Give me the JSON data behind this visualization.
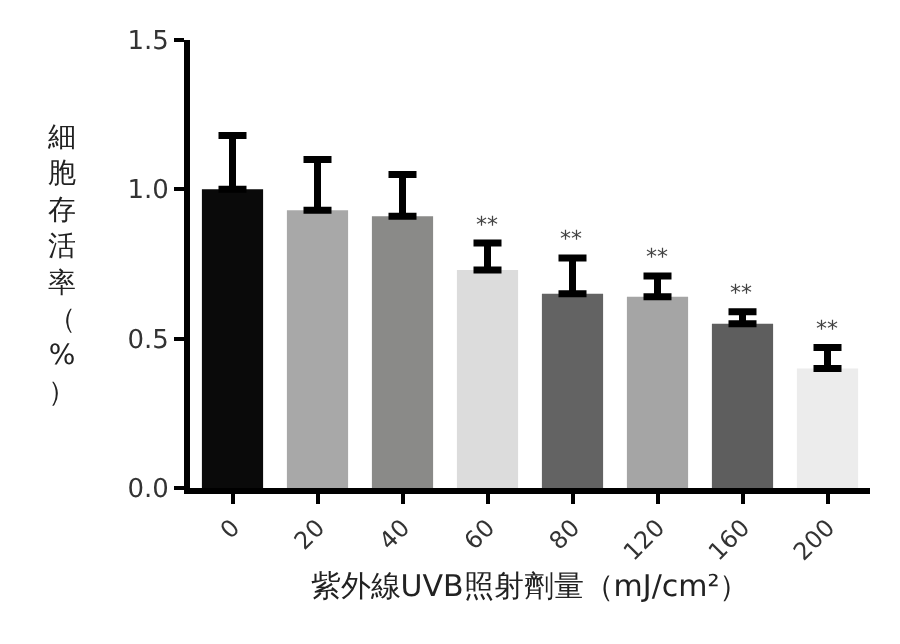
{
  "chart_data": {
    "type": "bar",
    "xlabel": "紫外線UVB照射劑量（mJ/cm²）",
    "ylabel": "細胞存活率（%）",
    "categories": [
      "0",
      "20",
      "40",
      "60",
      "80",
      "120",
      "160",
      "200"
    ],
    "values": [
      1.0,
      0.93,
      0.91,
      0.73,
      0.65,
      0.64,
      0.55,
      0.4
    ],
    "colors": [
      "#0a0a0a",
      "#a8a8a8",
      "#8a8a88",
      "#dcdcdc",
      "#636363",
      "#a5a5a5",
      "#5e5e5e",
      "#ececec"
    ],
    "errors": [
      [
        1.0,
        1.18
      ],
      [
        0.93,
        1.1
      ],
      [
        0.91,
        1.05
      ],
      [
        0.73,
        0.82
      ],
      [
        0.65,
        0.77
      ],
      [
        0.64,
        0.71
      ],
      [
        0.55,
        0.59
      ],
      [
        0.4,
        0.47
      ]
    ],
    "ylim": [
      0,
      1.5
    ],
    "yticks": [
      {
        "value": 0,
        "label": "0.0"
      },
      {
        "value": 0.5,
        "label": "0.5"
      },
      {
        "value": 1.0,
        "label": "1.0"
      },
      {
        "value": 1.5,
        "label": "1.5"
      }
    ],
    "annotations": [
      {
        "text": "**",
        "x": "60",
        "y": 0.82
      },
      {
        "text": "**",
        "x": "80",
        "y": 0.77
      },
      {
        "text": "**",
        "x": "120",
        "y": 0.71
      },
      {
        "text": "**",
        "x": "160",
        "y": 0.59
      },
      {
        "text": "**",
        "x": "200",
        "y": 0.47
      }
    ]
  }
}
